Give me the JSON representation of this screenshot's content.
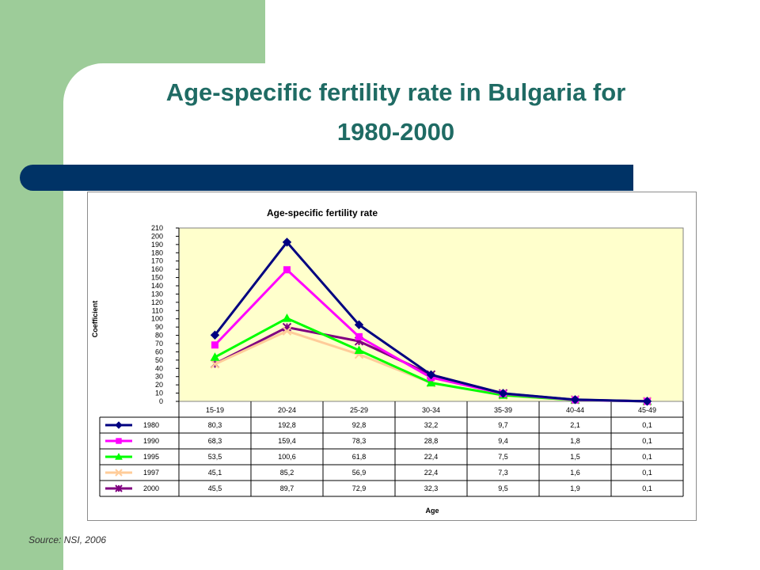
{
  "slide": {
    "title_line1": "Age-specific fertility rate in Bulgaria for",
    "title_line2": "1980-2000",
    "source": "Source: NSI, 2006"
  },
  "chart_data": {
    "type": "line",
    "title": "Age-specific fertility rate",
    "xlabel": "Age",
    "ylabel": "Coefficient",
    "ylim": [
      0,
      210
    ],
    "ytick_step": 10,
    "categories": [
      "15-19",
      "20-24",
      "25-29",
      "30-34",
      "35-39",
      "40-44",
      "45-49"
    ],
    "series": [
      {
        "name": "1980",
        "values": [
          80.3,
          192.8,
          92.8,
          32.2,
          9.7,
          2.1,
          0.1
        ],
        "labels": [
          "80,3",
          "192,8",
          "92,8",
          "32,2",
          "9,7",
          "2,1",
          "0,1"
        ],
        "color": "#000080",
        "marker": "diamond"
      },
      {
        "name": "1990",
        "values": [
          68.3,
          159.4,
          78.3,
          28.8,
          9.4,
          1.8,
          0.1
        ],
        "labels": [
          "68,3",
          "159,4",
          "78,3",
          "28,8",
          "9,4",
          "1,8",
          "0,1"
        ],
        "color": "#ff00ff",
        "marker": "square"
      },
      {
        "name": "1995",
        "values": [
          53.5,
          100.6,
          61.8,
          22.4,
          7.5,
          1.5,
          0.1
        ],
        "labels": [
          "53,5",
          "100,6",
          "61,8",
          "22,4",
          "7,5",
          "1,5",
          "0,1"
        ],
        "color": "#00ff00",
        "marker": "triangle"
      },
      {
        "name": "1997",
        "values": [
          45.1,
          85.2,
          56.9,
          22.4,
          7.3,
          1.6,
          0.1
        ],
        "labels": [
          "45,1",
          "85,2",
          "56,9",
          "22,4",
          "7,3",
          "1,6",
          "0,1"
        ],
        "color": "#ffcc99",
        "marker": "x"
      },
      {
        "name": "2000",
        "values": [
          45.5,
          89.7,
          72.9,
          32.3,
          9.5,
          1.9,
          0.1
        ],
        "labels": [
          "45,5",
          "89,7",
          "72,9",
          "32,3",
          "9,5",
          "1,9",
          "0,1"
        ],
        "color": "#800080",
        "marker": "star"
      }
    ],
    "plot_background": "#ffffcc",
    "legend": "data-table-below"
  }
}
